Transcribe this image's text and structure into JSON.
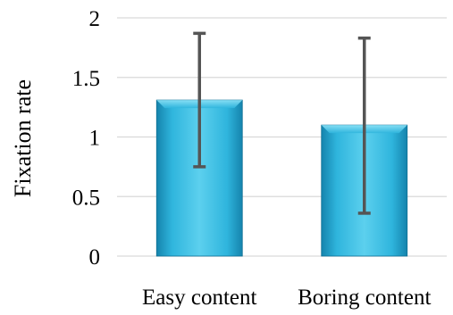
{
  "chart_data": {
    "type": "bar",
    "title": "",
    "xlabel": "",
    "ylabel": "Fixation rate",
    "categories": [
      "Easy content",
      "Boring content"
    ],
    "values": [
      1.31,
      1.1
    ],
    "error_low": [
      0.75,
      0.36
    ],
    "error_high": [
      1.87,
      1.83
    ],
    "ylim": [
      0,
      2
    ],
    "yticks": [
      "0",
      "0.5",
      "1",
      "1.5",
      "2"
    ],
    "ytick_values": [
      0,
      0.5,
      1,
      1.5,
      2
    ],
    "grid": true,
    "legend": "none",
    "colors": {
      "bar_light": "#5cd0ee",
      "bar_mid": "#2fb5dd",
      "bar_dark": "#1584ad",
      "bar_edge": "#0f6f93",
      "error_bar": "#555555",
      "grid": "#d9d9d9"
    }
  }
}
